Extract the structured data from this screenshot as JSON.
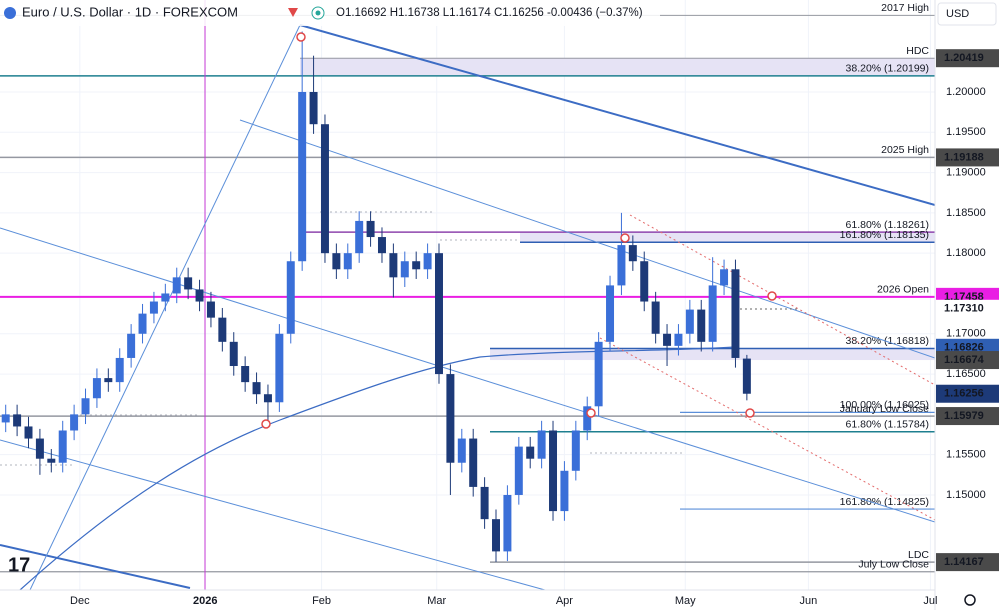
{
  "header": {
    "title": "Euro / U.S. Dollar · 1D · FOREXCOM",
    "quote": "O1.16692 H1.16738 L1.16174 C1.16256 -0.00436 (−0.37%)",
    "currency": "USD"
  },
  "chart_data": {
    "type": "candlestick",
    "up_color": "#3a6fd8",
    "down_color": "#1d3a78",
    "categories": [
      null,
      null,
      null,
      null,
      null,
      null,
      null,
      null,
      null,
      null,
      null,
      null,
      null,
      null,
      null,
      null,
      null,
      null,
      null,
      null,
      null,
      null,
      null,
      null,
      null,
      null,
      null,
      null,
      null,
      null,
      null,
      null,
      null,
      null,
      null,
      null,
      null,
      null,
      null,
      null,
      null,
      null,
      null,
      null,
      null,
      null,
      null,
      null,
      null,
      null,
      null,
      null,
      null,
      null,
      null,
      null,
      null,
      null,
      null,
      null,
      null,
      null,
      null,
      null,
      null,
      null
    ],
    "open": [
      1.159,
      1.16,
      1.1585,
      1.157,
      1.1545,
      1.154,
      1.158,
      1.16,
      1.162,
      1.1645,
      1.164,
      1.167,
      1.17,
      1.1725,
      1.174,
      1.175,
      1.177,
      1.1755,
      1.174,
      1.172,
      1.169,
      1.166,
      1.164,
      1.1625,
      1.1615,
      1.17,
      1.179,
      1.2,
      1.196,
      1.18,
      1.178,
      1.18,
      1.184,
      1.182,
      1.18,
      1.177,
      1.179,
      1.178,
      1.18,
      1.165,
      1.154,
      1.157,
      1.151,
      1.147,
      1.143,
      1.15,
      1.156,
      1.1545,
      1.158,
      1.148,
      1.153,
      1.158,
      1.161,
      1.169,
      1.176,
      1.181,
      1.179,
      1.174,
      1.17,
      1.1685,
      1.17,
      1.173,
      1.169,
      1.176,
      1.178,
      1.16692
    ],
    "high": [
      1.1612,
      1.1612,
      1.1597,
      1.1582,
      1.1557,
      1.1592,
      1.1612,
      1.1632,
      1.1657,
      1.1657,
      1.1682,
      1.1712,
      1.1737,
      1.1752,
      1.1762,
      1.1782,
      1.1782,
      1.1767,
      1.1752,
      1.1732,
      1.1702,
      1.1672,
      1.1652,
      1.1637,
      1.1712,
      1.1802,
      1.2075,
      1.2045,
      1.1972,
      1.1812,
      1.1812,
      1.1852,
      1.1852,
      1.1832,
      1.1812,
      1.1802,
      1.1802,
      1.1812,
      1.1812,
      1.1662,
      1.1582,
      1.1582,
      1.1522,
      1.1482,
      1.1512,
      1.1572,
      1.1572,
      1.1592,
      1.1592,
      1.1542,
      1.1592,
      1.1622,
      1.1702,
      1.1772,
      1.185,
      1.1822,
      1.1802,
      1.1752,
      1.1712,
      1.1712,
      1.1742,
      1.1742,
      1.1795,
      1.1792,
      1.1792,
      1.16738
    ],
    "low": [
      1.1578,
      1.1573,
      1.1558,
      1.1525,
      1.1528,
      1.1528,
      1.1568,
      1.1588,
      1.1608,
      1.1628,
      1.1628,
      1.1658,
      1.1688,
      1.1713,
      1.1728,
      1.1738,
      1.1743,
      1.1728,
      1.1708,
      1.1678,
      1.1648,
      1.1628,
      1.1613,
      1.159,
      1.1603,
      1.1688,
      1.1778,
      1.1948,
      1.1788,
      1.1768,
      1.1768,
      1.1788,
      1.1808,
      1.1788,
      1.1745,
      1.1758,
      1.1768,
      1.1768,
      1.1638,
      1.15,
      1.1528,
      1.1498,
      1.1458,
      1.1417,
      1.1418,
      1.1488,
      1.1533,
      1.1533,
      1.1468,
      1.1468,
      1.1518,
      1.1568,
      1.1598,
      1.1678,
      1.1748,
      1.1778,
      1.1728,
      1.1688,
      1.166,
      1.1673,
      1.1688,
      1.1678,
      1.1678,
      1.1748,
      1.1658,
      1.16174
    ],
    "close": [
      1.16,
      1.1585,
      1.157,
      1.1545,
      1.154,
      1.158,
      1.16,
      1.162,
      1.1645,
      1.164,
      1.167,
      1.17,
      1.1725,
      1.174,
      1.175,
      1.177,
      1.1755,
      1.174,
      1.172,
      1.169,
      1.166,
      1.164,
      1.1625,
      1.1615,
      1.17,
      1.179,
      1.2,
      1.196,
      1.18,
      1.178,
      1.18,
      1.184,
      1.182,
      1.18,
      1.177,
      1.179,
      1.178,
      1.18,
      1.165,
      1.154,
      1.157,
      1.151,
      1.147,
      1.143,
      1.15,
      1.156,
      1.1545,
      1.158,
      1.148,
      1.153,
      1.158,
      1.161,
      1.169,
      1.176,
      1.181,
      1.179,
      1.174,
      1.17,
      1.1685,
      1.17,
      1.173,
      1.169,
      1.176,
      1.178,
      1.167,
      1.16256
    ],
    "xlim": [
      -0.5,
      81.5
    ],
    "xticks": [
      {
        "value": 6.5,
        "label": "Dec"
      },
      {
        "value": 17.5,
        "label": "2026"
      },
      {
        "value": 27.7,
        "label": "Feb"
      },
      {
        "value": 37.8,
        "label": "Mar"
      },
      {
        "value": 49,
        "label": "Apr"
      },
      {
        "value": 59.6,
        "label": "May"
      },
      {
        "value": 70.4,
        "label": "Jun"
      },
      {
        "value": 81.1,
        "label": "Jul"
      }
    ],
    "ylim": [
      1.13821,
      1.21141
    ],
    "yticks": [
      {
        "value": 1.2,
        "label": "1.20000"
      },
      {
        "value": 1.195,
        "label": "1.19500"
      },
      {
        "value": 1.19,
        "label": "1.19000"
      },
      {
        "value": 1.185,
        "label": "1.18500"
      },
      {
        "value": 1.18,
        "label": "1.18000"
      },
      {
        "value": 1.17,
        "label": "1.17000"
      },
      {
        "value": 1.165,
        "label": "1.16500"
      },
      {
        "value": 1.155,
        "label": "1.15500"
      },
      {
        "value": 1.15,
        "label": "1.15000"
      }
    ],
    "grid": true,
    "levels": [
      {
        "label": "2017 High",
        "value": 1.2095,
        "color": "#9598a1"
      },
      {
        "label": "HDC",
        "value": 1.20419,
        "color": "#9598a1"
      },
      {
        "label": "38.20% (1.20199)",
        "value": 1.20199,
        "color": "#1e7f8f"
      },
      {
        "label": "2025 High",
        "value": 1.19188,
        "color": "#9598a1"
      },
      {
        "label": "61.80% (1.18261)",
        "value": 1.18261,
        "color": "#8e44ad"
      },
      {
        "label": "161.80% (1.18135)",
        "value": 1.18135,
        "color": "#2f5fb3"
      },
      {
        "label": "2026 Open",
        "value": 1.17458,
        "color": "#e91ee3"
      },
      {
        "label": "38.20% (1.16818)",
        "value": 1.16818,
        "color": "#2f5fb3"
      },
      {
        "label": "100.00% (1.16025)",
        "value": 1.16025,
        "color": "#5b8fd9"
      },
      {
        "label": "January Low Close",
        "value": 1.15979,
        "color": "#9598a1"
      },
      {
        "label": "61.80% (1.15784)",
        "value": 1.15784,
        "color": "#1e7f8f"
      },
      {
        "label": "161.80% (1.14825)",
        "value": 1.14825,
        "color": "#5b8fd9"
      },
      {
        "label": "LDC",
        "value": 1.14167,
        "color": "#9598a1"
      },
      {
        "label": "July Low Close",
        "value": 1.14047,
        "color": "#9598a1"
      }
    ],
    "price_tags": [
      {
        "value": 1.20419,
        "label": "1.20419",
        "color": "#4a4a4a",
        "text_color": "#ffffff"
      },
      {
        "value": 1.19188,
        "label": "1.19188",
        "color": "#4a4a4a",
        "text_color": "#ffffff"
      },
      {
        "value": 1.17458,
        "label": "1.17458",
        "color": "#e91ee3",
        "text_color": "#ffffff"
      },
      {
        "value": 1.1731,
        "label": "1.17310",
        "color": "#ffffff",
        "text_color": "#131722"
      },
      {
        "value": 1.16826,
        "label": "1.16826",
        "color": "#2f5fb3",
        "text_color": "#ffffff"
      },
      {
        "value": 1.16674,
        "label": "1.16674",
        "color": "#4a4a4a",
        "text_color": "#ffffff"
      },
      {
        "value": 1.16256,
        "label": "1.16256",
        "color": "#1d3a78",
        "text_color": "#ffffff"
      },
      {
        "value": 1.15979,
        "label": "1.15979",
        "color": "#4a4a4a",
        "text_color": "#ffffff"
      },
      {
        "value": 1.14167,
        "label": "1.14167",
        "color": "#4a4a4a",
        "text_color": "#ffffff"
      }
    ]
  }
}
